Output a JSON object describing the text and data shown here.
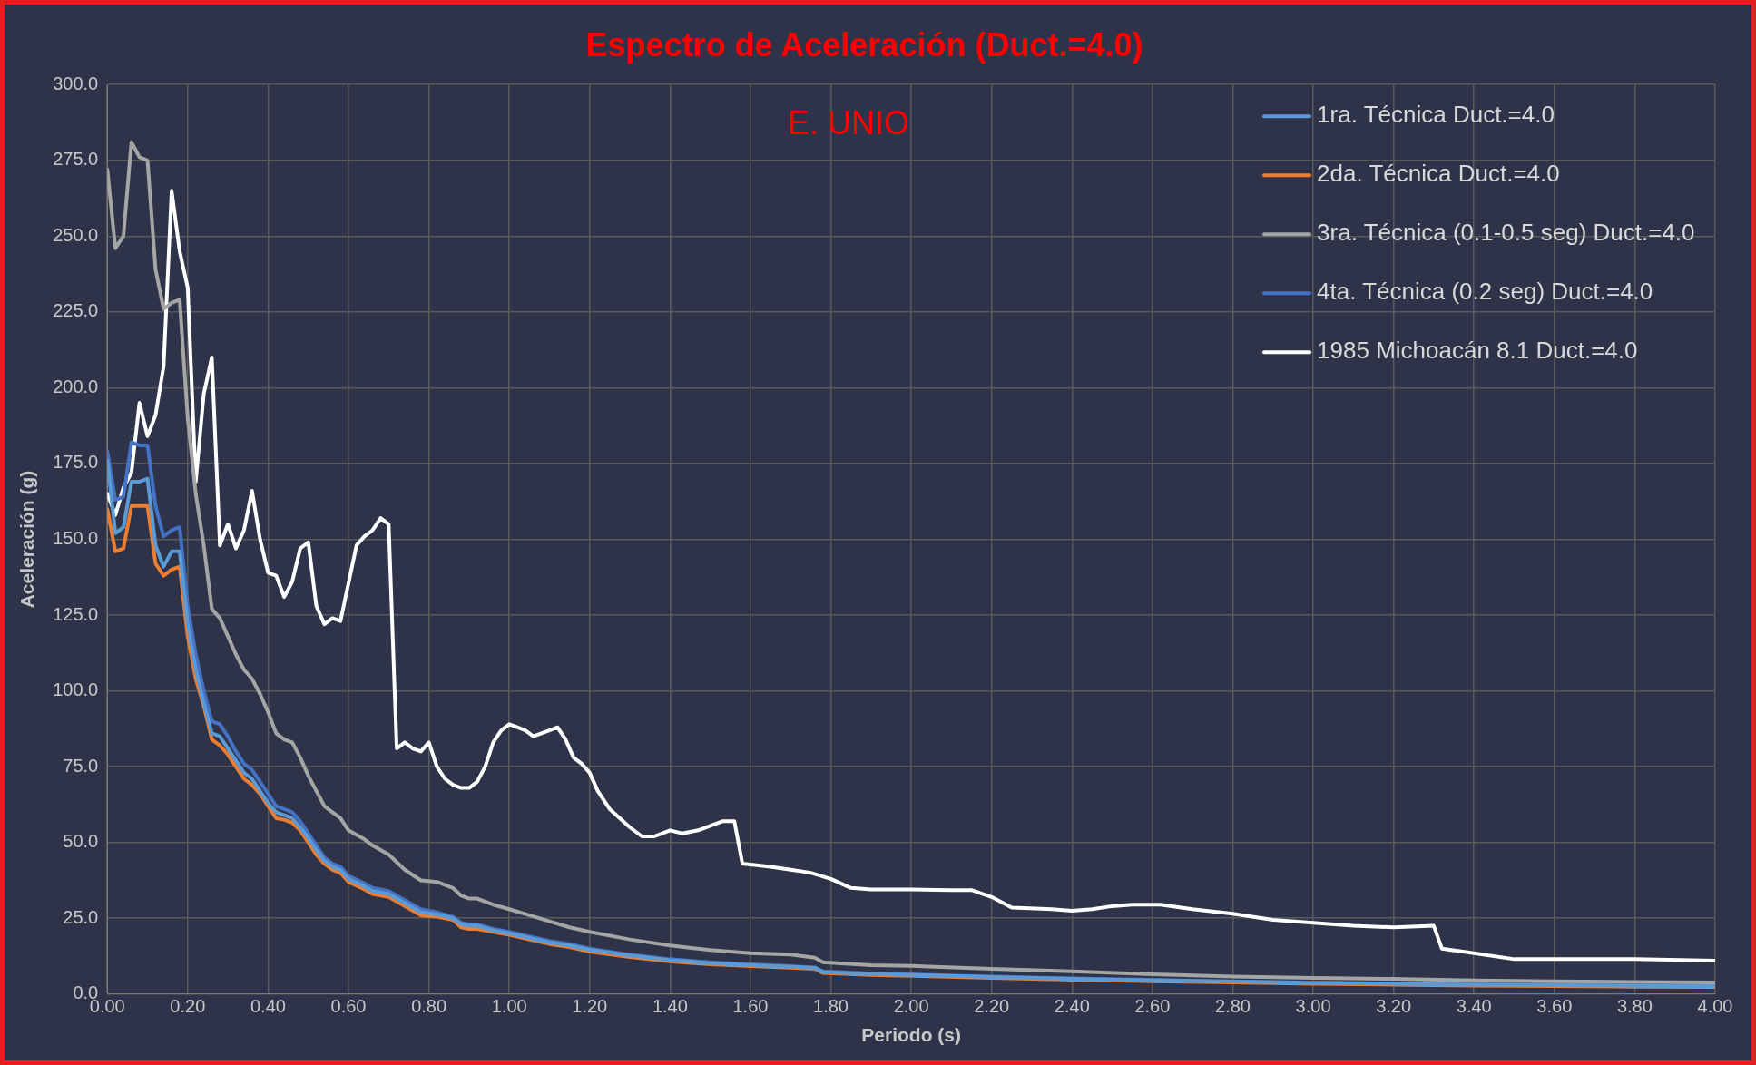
{
  "chart_data": {
    "type": "line",
    "title": "Espectro de Aceleración (Duct.=4.0)",
    "xlabel": "Periodo (s)",
    "ylabel": "Aceleración (g)",
    "annotations": [
      "E. UNIO"
    ],
    "x": [
      0,
      0.02,
      0.04,
      0.06,
      0.08,
      0.1,
      0.12,
      0.14,
      0.16,
      0.18,
      0.2,
      0.22,
      0.24,
      0.26,
      0.28,
      0.3,
      0.32,
      0.34,
      0.36,
      0.38,
      0.4,
      0.42,
      0.44,
      0.46,
      0.48,
      0.5,
      0.52,
      0.54,
      0.56,
      0.58,
      0.6,
      0.64,
      0.66,
      0.7,
      0.74,
      0.78,
      0.82,
      0.86,
      0.88,
      0.9,
      0.92,
      0.96,
      1.0,
      1.05,
      1.1,
      1.15,
      1.2,
      1.3,
      1.4,
      1.5,
      1.6,
      1.7,
      1.76,
      1.78,
      1.9,
      2.0,
      2.2,
      2.4,
      2.6,
      2.8,
      3.0,
      3.2,
      3.4,
      3.6,
      3.8,
      4.0
    ],
    "series": [
      {
        "name": "1ra. Técnica Duct.=4.0",
        "color": "#5b9bd5",
        "values": [
          176,
          152,
          154,
          169,
          169,
          170,
          148,
          141,
          146,
          146,
          122,
          107,
          96,
          86,
          85,
          81,
          77,
          73,
          71,
          67,
          63,
          60,
          59,
          58,
          55,
          51.5,
          47.5,
          44,
          42,
          41,
          38,
          35.5,
          34,
          33,
          30,
          27,
          26.3,
          25,
          23,
          22.5,
          22.5,
          21,
          20,
          18.5,
          17,
          16,
          14.6,
          12.7,
          11.2,
          10.2,
          9.5,
          9,
          8.6,
          7.3,
          6.6,
          6.3,
          5.6,
          5,
          4.5,
          4.1,
          3.7,
          3.4,
          3.1,
          2.9,
          2.7,
          2.6
        ]
      },
      {
        "name": "2da. Técnica Duct.=4.0",
        "color": "#ed7d31",
        "values": [
          160,
          146,
          147,
          161,
          161,
          161,
          142,
          138,
          140,
          141,
          118,
          104,
          95,
          84,
          82,
          79,
          75,
          71,
          69,
          66,
          62,
          58,
          57.5,
          56.5,
          54,
          50,
          46,
          43,
          41,
          40,
          37,
          34.5,
          33,
          32,
          29,
          26,
          25.5,
          24.5,
          22,
          21.5,
          21.5,
          20.5,
          19.5,
          18,
          16.5,
          15.5,
          14,
          12.2,
          10.8,
          9.8,
          9.2,
          8.7,
          8.3,
          7,
          6.3,
          6,
          5.3,
          4.7,
          4.2,
          3.8,
          3.4,
          3.1,
          2.8,
          2.6,
          2.4,
          2.3
        ]
      },
      {
        "name": "3ra. Técnica (0.1-0.5 seg) Duct.=4.0",
        "color": "#a5a5a5",
        "values": [
          272,
          246,
          250,
          281,
          276,
          275,
          239,
          226,
          228,
          229,
          190,
          165,
          148,
          127,
          124,
          118,
          112,
          107,
          104,
          99,
          93,
          86,
          84,
          83,
          78,
          72,
          67,
          62,
          60,
          58,
          54,
          51,
          49,
          46,
          41,
          37.5,
          37,
          35,
          32.5,
          31.5,
          31.5,
          29.5,
          28,
          26,
          24,
          22,
          20.5,
          18,
          16,
          14.5,
          13.5,
          13,
          12,
          10.5,
          9.5,
          9.3,
          8.3,
          7.5,
          6.5,
          5.8,
          5.3,
          5,
          4.5,
          4.2,
          4,
          3.8
        ]
      },
      {
        "name": "4ta. Técnica (0.2 seg) Duct.=4.0",
        "color": "#4472c4",
        "values": [
          179,
          163,
          164,
          182,
          181,
          181,
          161,
          151,
          153,
          154,
          128,
          112,
          100,
          90,
          89,
          85,
          80,
          76,
          74,
          70,
          66,
          62,
          61,
          60,
          57,
          53,
          49,
          45,
          43,
          42,
          39,
          36.5,
          35,
          34,
          31,
          28,
          27,
          25.5,
          23.5,
          23,
          23,
          21.5,
          20.5,
          19,
          17.5,
          16.5,
          15,
          13,
          11.5,
          10.5,
          9.8,
          9.2,
          8.8,
          7.5,
          6.8,
          6.5,
          5.8,
          5.2,
          4.7,
          4.2,
          3.8,
          3.5,
          3.2,
          3,
          2.8,
          2.7
        ]
      },
      {
        "name": "1985 Michoacán 8.1 Duct.=4.0",
        "color": "#ffffff",
        "x": [
          0,
          0.02,
          0.04,
          0.06,
          0.08,
          0.1,
          0.12,
          0.14,
          0.16,
          0.18,
          0.2,
          0.22,
          0.24,
          0.26,
          0.28,
          0.3,
          0.32,
          0.34,
          0.36,
          0.38,
          0.4,
          0.42,
          0.44,
          0.46,
          0.48,
          0.5,
          0.52,
          0.54,
          0.56,
          0.58,
          0.62,
          0.64,
          0.66,
          0.68,
          0.7,
          0.72,
          0.74,
          0.76,
          0.78,
          0.8,
          0.82,
          0.84,
          0.86,
          0.88,
          0.9,
          0.92,
          0.94,
          0.96,
          0.98,
          1.0,
          1.02,
          1.04,
          1.06,
          1.08,
          1.1,
          1.12,
          1.14,
          1.16,
          1.18,
          1.2,
          1.22,
          1.25,
          1.3,
          1.33,
          1.36,
          1.4,
          1.43,
          1.47,
          1.5,
          1.53,
          1.56,
          1.58,
          1.65,
          1.7,
          1.75,
          1.8,
          1.85,
          1.9,
          2.0,
          2.1,
          2.15,
          2.2,
          2.25,
          2.35,
          2.4,
          2.45,
          2.5,
          2.55,
          2.62,
          2.7,
          2.8,
          2.9,
          3.0,
          3.1,
          3.2,
          3.3,
          3.32,
          3.4,
          3.5,
          3.6,
          3.8,
          4.0
        ],
        "values": [
          165,
          158,
          167,
          172,
          195,
          184,
          191,
          207,
          265,
          245,
          233,
          169,
          198,
          210,
          148,
          155,
          147,
          153,
          166,
          150,
          139,
          138,
          131,
          136,
          147,
          149,
          128,
          122,
          124,
          123,
          148,
          151,
          153,
          157,
          155,
          81,
          83,
          81,
          80,
          83,
          75,
          71,
          69,
          68,
          68,
          70,
          75,
          83,
          87,
          89,
          88,
          87,
          85,
          86,
          87,
          88,
          84,
          78,
          76,
          73,
          67,
          61,
          55,
          52,
          52,
          54,
          53,
          54,
          55.5,
          57,
          57,
          43,
          42,
          41,
          40,
          38,
          35,
          34.5,
          34.5,
          34.3,
          34.3,
          32,
          28.5,
          28,
          27.5,
          28,
          29,
          29.5,
          29.5,
          28,
          26.5,
          24.5,
          23.5,
          22.5,
          22,
          22.5,
          15,
          13.5,
          11.5,
          11.5,
          11.5,
          11
        ]
      }
    ],
    "xlim": [
      0,
      4
    ],
    "xticks": [
      {
        "value": 0,
        "label": "0.00"
      },
      {
        "value": 0.2,
        "label": "0.20"
      },
      {
        "value": 0.4,
        "label": "0.40"
      },
      {
        "value": 0.6,
        "label": "0.60"
      },
      {
        "value": 0.8,
        "label": "0.80"
      },
      {
        "value": 1,
        "label": "1.00"
      },
      {
        "value": 1.2,
        "label": "1.20"
      },
      {
        "value": 1.4,
        "label": "1.40"
      },
      {
        "value": 1.6,
        "label": "1.60"
      },
      {
        "value": 1.8,
        "label": "1.80"
      },
      {
        "value": 2,
        "label": "2.00"
      },
      {
        "value": 2.2,
        "label": "2.20"
      },
      {
        "value": 2.4,
        "label": "2.40"
      },
      {
        "value": 2.6,
        "label": "2.60"
      },
      {
        "value": 2.8,
        "label": "2.80"
      },
      {
        "value": 3,
        "label": "3.00"
      },
      {
        "value": 3.2,
        "label": "3.20"
      },
      {
        "value": 3.4,
        "label": "3.40"
      },
      {
        "value": 3.6,
        "label": "3.60"
      },
      {
        "value": 3.8,
        "label": "3.80"
      },
      {
        "value": 4,
        "label": "4.00"
      }
    ],
    "ylim": [
      0,
      300
    ],
    "yticks": [
      {
        "value": 0,
        "label": "0.0"
      },
      {
        "value": 25,
        "label": "25.0"
      },
      {
        "value": 50,
        "label": "50.0"
      },
      {
        "value": 75,
        "label": "75.0"
      },
      {
        "value": 100,
        "label": "100.0"
      },
      {
        "value": 125,
        "label": "125.0"
      },
      {
        "value": 150,
        "label": "150.0"
      },
      {
        "value": 175,
        "label": "175.0"
      },
      {
        "value": 200,
        "label": "200.0"
      },
      {
        "value": 225,
        "label": "225.0"
      },
      {
        "value": 250,
        "label": "250.0"
      },
      {
        "value": 275,
        "label": "275.0"
      },
      {
        "value": 300,
        "label": "300.0"
      }
    ],
    "grid": true,
    "legend": "top right",
    "marker": "none",
    "line_style": "solid"
  }
}
